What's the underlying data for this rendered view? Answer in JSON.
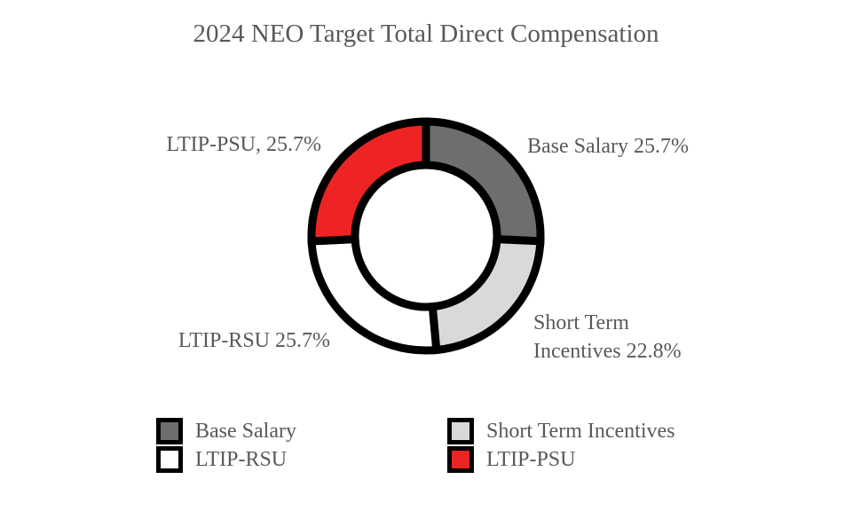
{
  "chart_data": {
    "type": "pie",
    "variant": "donut",
    "title": "2024 NEO Target Total Direct Compensation",
    "categories": [
      "Base Salary",
      "Short Term Incentives",
      "LTIP-RSU",
      "LTIP-PSU"
    ],
    "values": [
      25.7,
      22.8,
      25.7,
      25.7
    ],
    "unit": "%",
    "colors": [
      "#6e6e6e",
      "#d9d9d9",
      "#ffffff",
      "#ee2424"
    ],
    "outline_color": "#000000",
    "data_labels": [
      [
        "Base Salary 25.7%"
      ],
      [
        "Short Term",
        "Incentives 22.8%"
      ],
      [
        "LTIP-RSU 25.7%"
      ],
      [
        "LTIP-PSU, 25.7%"
      ]
    ],
    "legend": {
      "placement": "bottom",
      "entries": [
        "Base Salary",
        "Short Term Incentives",
        "LTIP-RSU",
        "LTIP-PSU"
      ]
    }
  }
}
